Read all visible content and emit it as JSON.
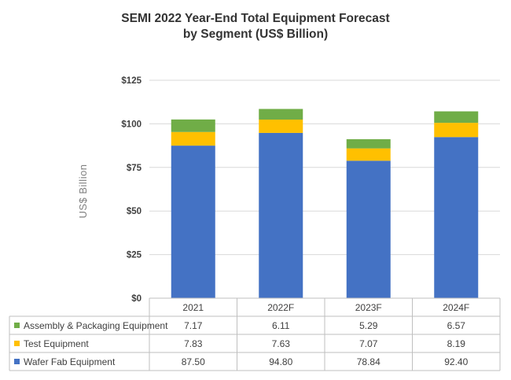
{
  "chart_data": {
    "type": "bar",
    "stacked": true,
    "title": "SEMI 2022 Year-End Total Equipment Forecast",
    "subtitle": "by Segment (US$ Billion)",
    "ylabel": "US$ Billion",
    "ylim": [
      0,
      125
    ],
    "yticks": [
      "$0",
      "$25",
      "$50",
      "$75",
      "$100",
      "$125"
    ],
    "ytick_values": [
      0,
      25,
      50,
      75,
      100,
      125
    ],
    "grid": true,
    "legend": "data-table-left",
    "categories": [
      "2021",
      "2022F",
      "2023F",
      "2024F"
    ],
    "series": [
      {
        "name": "Wafer Fab Equipment",
        "color": "#4472C4",
        "values": [
          87.5,
          94.8,
          78.84,
          92.4
        ],
        "labels": [
          "87.50",
          "94.80",
          "78.84",
          "92.40"
        ]
      },
      {
        "name": "Test Equipment",
        "color": "#FFC000",
        "values": [
          7.83,
          7.63,
          7.07,
          8.19
        ],
        "labels": [
          "7.83",
          "7.63",
          "7.07",
          "8.19"
        ]
      },
      {
        "name": "Assembly & Packaging Equipment",
        "color": "#70AD47",
        "values": [
          7.17,
          6.11,
          5.29,
          6.57
        ],
        "labels": [
          "7.17",
          "6.11",
          "5.29",
          "6.57"
        ]
      }
    ],
    "table_row_order": [
      "Assembly & Packaging Equipment",
      "Test Equipment",
      "Wafer Fab Equipment"
    ]
  }
}
